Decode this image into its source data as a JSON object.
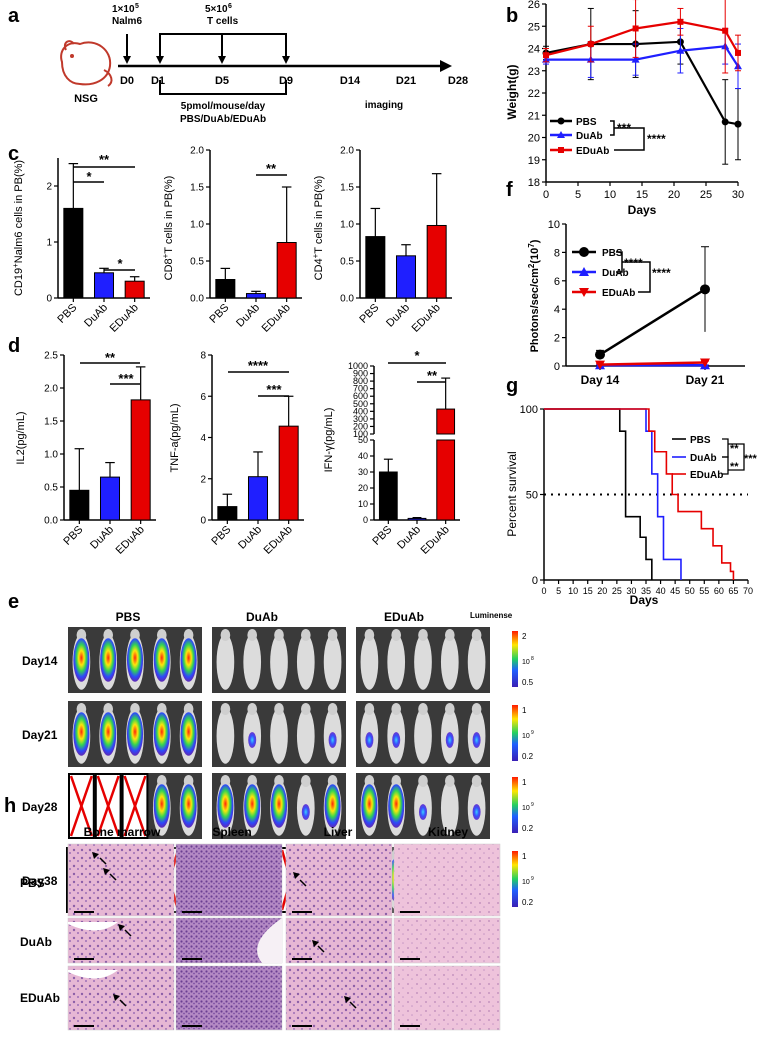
{
  "panel_labels": {
    "a": "a",
    "b": "b",
    "c": "c",
    "d": "d",
    "e": "e",
    "f": "f",
    "g": "g",
    "h": "h"
  },
  "panel_a": {
    "mouse_label": "NSG",
    "nalm6_dose": "1×10",
    "nalm6_exp": "5",
    "nalm6_name": "Nalm6",
    "tcell_dose": "5×10",
    "tcell_exp": "6",
    "tcell_name": "T cells",
    "days": [
      "D0",
      "D1",
      "D5",
      "D9",
      "D14",
      "D21",
      "D28"
    ],
    "treatment_line1": "5pmol/mouse/day",
    "treatment_line2": "PBS/DuAb/EDuAb",
    "imaging": "imaging"
  },
  "colors": {
    "pbs": "#000000",
    "duab": "#1f1fff",
    "eduab": "#e60000"
  },
  "groups": [
    "PBS",
    "DuAb",
    "EDuAb"
  ],
  "chart_data": [
    {
      "id": "b",
      "type": "line",
      "title": "",
      "xlabel": "Days",
      "ylabel": "Weight(g)",
      "xlim": [
        0,
        30
      ],
      "ylim": [
        18,
        26
      ],
      "xticks": [
        "0",
        "5",
        "10",
        "15",
        "20",
        "25",
        "30"
      ],
      "yticks": [
        "18",
        "19",
        "20",
        "21",
        "22",
        "23",
        "24",
        "25",
        "26"
      ],
      "x": [
        0,
        7,
        14,
        21,
        28,
        30
      ],
      "series": [
        {
          "name": "PBS",
          "values": [
            23.8,
            24.2,
            24.2,
            24.3,
            20.7,
            20.6
          ],
          "err": [
            0.3,
            1.6,
            1.5,
            1.0,
            1.9,
            1.6
          ]
        },
        {
          "name": "DuAb",
          "values": [
            23.5,
            23.5,
            23.5,
            23.9,
            24.1,
            23.2
          ],
          "err": [
            0.2,
            0.8,
            0.7,
            1.0,
            0.8,
            1.0
          ]
        },
        {
          "name": "EDuAb",
          "values": [
            23.7,
            24.2,
            24.9,
            25.2,
            24.8,
            23.8
          ],
          "err": [
            0.3,
            0.8,
            1.3,
            0.6,
            1.9,
            0.8
          ]
        }
      ],
      "significance": [
        "***",
        "****"
      ]
    },
    {
      "id": "c1",
      "type": "bar",
      "ylabel": "CD19+Nalm6 cells in PB(%)",
      "ylabel_main": "CD19",
      "ylabel_sup": "+",
      "ylabel_rest": "Nalm6 cells in PB(%)",
      "ylim": [
        0,
        2.5
      ],
      "yticks": [
        "0",
        "1",
        "2"
      ],
      "categories": [
        "PBS",
        "DuAb",
        "EDuAb"
      ],
      "values": [
        1.6,
        0.45,
        0.3
      ],
      "err": [
        0.8,
        0.08,
        0.08
      ],
      "significance": [
        "**",
        "*",
        "*"
      ]
    },
    {
      "id": "c2",
      "type": "bar",
      "ylabel": "CD8+T cells in PB(%)",
      "ylabel_main": "CD8",
      "ylabel_sup": "+",
      "ylabel_rest": "T cells in PB(%)",
      "ylim": [
        0,
        2.0
      ],
      "yticks": [
        "0.0",
        "0.5",
        "1.0",
        "1.5",
        "2.0"
      ],
      "categories": [
        "PBS",
        "DuAb",
        "EDuAb"
      ],
      "values": [
        0.25,
        0.06,
        0.75
      ],
      "err": [
        0.15,
        0.03,
        0.75
      ],
      "significance": [
        "**"
      ]
    },
    {
      "id": "c3",
      "type": "bar",
      "ylabel": "CD4+T cells in PB(%)",
      "ylabel_main": "CD4",
      "ylabel_sup": "+",
      "ylabel_rest": "T cells in PB(%)",
      "ylim": [
        0,
        2.0
      ],
      "yticks": [
        "0.0",
        "0.5",
        "1.0",
        "1.5",
        "2.0"
      ],
      "categories": [
        "PBS",
        "DuAb",
        "EDuAb"
      ],
      "values": [
        0.83,
        0.57,
        0.98
      ],
      "err": [
        0.38,
        0.15,
        0.7
      ],
      "significance": []
    },
    {
      "id": "d1",
      "type": "bar",
      "ylabel": "IL2(pg/mL)",
      "ylim": [
        0,
        2.5
      ],
      "yticks": [
        "0.0",
        "0.5",
        "1.0",
        "1.5",
        "2.0",
        "2.5"
      ],
      "categories": [
        "PBS",
        "DuAb",
        "EDuAb"
      ],
      "values": [
        0.45,
        0.65,
        1.82
      ],
      "err": [
        0.63,
        0.22,
        0.5
      ],
      "significance": [
        "**",
        "***"
      ]
    },
    {
      "id": "d2",
      "type": "bar",
      "ylabel": "TNF-a(pg/mL)",
      "ylim": [
        0,
        8
      ],
      "yticks": [
        "0",
        "2",
        "4",
        "6",
        "8"
      ],
      "categories": [
        "PBS",
        "DuAb",
        "EDuAb"
      ],
      "values": [
        0.65,
        2.1,
        4.55
      ],
      "err": [
        0.6,
        1.2,
        1.45
      ],
      "significance": [
        "****",
        "***"
      ]
    },
    {
      "id": "d3",
      "type": "bar",
      "ylabel": "IFN-γ(pg/mL)",
      "ylim": [
        0,
        1000
      ],
      "yticks": [
        "0",
        "10",
        "20",
        "30",
        "40",
        "50",
        "100",
        "200",
        "300",
        "400",
        "500",
        "600",
        "700",
        "800",
        "900",
        "1000"
      ],
      "categories": [
        "PBS",
        "DuAb",
        "EDuAb"
      ],
      "values": [
        30,
        1,
        430
      ],
      "err": [
        8,
        0.5,
        410
      ],
      "significance": [
        "*",
        "**"
      ]
    },
    {
      "id": "f",
      "type": "line",
      "xlabel": "",
      "ylabel": "Photons/sec/cm2(10^7)",
      "ylabel_main": "Photons/sec/cm",
      "ylabel_sup": "2",
      "ylabel_rest": "(10",
      "ylabel_sup2": "7",
      "ylabel_end": ")",
      "ylim": [
        0,
        10
      ],
      "yticks": [
        "0",
        "2",
        "4",
        "6",
        "8",
        "10"
      ],
      "categories": [
        "Day 14",
        "Day 21"
      ],
      "series": [
        {
          "name": "PBS",
          "values": [
            0.8,
            5.4
          ],
          "err": [
            0.3,
            3.0
          ]
        },
        {
          "name": "DuAb",
          "values": [
            0.05,
            0.05
          ],
          "err": [
            0.02,
            0.02
          ]
        },
        {
          "name": "EDuAb",
          "values": [
            0.1,
            0.25
          ],
          "err": [
            0.05,
            0.1
          ]
        }
      ],
      "significance": [
        "****",
        "****"
      ]
    },
    {
      "id": "g",
      "type": "line",
      "xlabel": "Days",
      "ylabel": "Percent survival",
      "xlim": [
        0,
        70
      ],
      "ylim": [
        0,
        100
      ],
      "xticks": [
        "0",
        "5",
        "10",
        "15",
        "20",
        "25",
        "30",
        "35",
        "40",
        "45",
        "50",
        "55",
        "60",
        "65",
        "70"
      ],
      "yticks": [
        "0",
        "50",
        "100"
      ],
      "series": [
        {
          "name": "PBS",
          "x": [
            0,
            26,
            26,
            28,
            28,
            33,
            33,
            35,
            35,
            37,
            37
          ],
          "values": [
            100,
            100,
            87,
            87,
            37,
            37,
            25,
            25,
            12,
            12,
            0
          ]
        },
        {
          "name": "DuAb",
          "x": [
            0,
            35,
            35,
            37,
            37,
            39,
            39,
            41,
            41,
            47,
            47
          ],
          "values": [
            100,
            100,
            87,
            87,
            62,
            62,
            37,
            37,
            12,
            12,
            0
          ]
        },
        {
          "name": "EDuAb",
          "x": [
            0,
            36,
            36,
            38,
            38,
            42,
            42,
            44,
            44,
            46,
            46,
            48,
            48,
            54,
            54,
            58,
            58,
            61,
            61,
            64,
            64,
            65,
            65
          ],
          "values": [
            100,
            100,
            87,
            87,
            75,
            75,
            62,
            62,
            50,
            50,
            40,
            40,
            40,
            40,
            30,
            30,
            20,
            20,
            10,
            10,
            5,
            5,
            0
          ]
        }
      ],
      "significance": [
        "**",
        "**",
        "***"
      ]
    }
  ],
  "panel_e": {
    "group_titles": [
      "PBS",
      "DuAb",
      "EDuAb"
    ],
    "luminescence": "Luminense",
    "days": [
      "Day14",
      "Day21",
      "Day28",
      "Day38"
    ],
    "scales": [
      {
        "max": "2",
        "exp": "10",
        "exp_sup": "8",
        "min": "0.5"
      },
      {
        "max": "1",
        "exp": "10",
        "exp_sup": "9",
        "min": "0.2"
      },
      {
        "max": "1",
        "exp": "10",
        "exp_sup": "9",
        "min": "0.2"
      },
      {
        "max": "1",
        "exp": "10",
        "exp_sup": "9",
        "min": "0.2"
      }
    ]
  },
  "panel_h": {
    "columns": [
      "Bone marrow",
      "Spleen",
      "Liver",
      "Kidney"
    ],
    "rows": [
      "PBS",
      "DuAb",
      "EDuAb"
    ]
  }
}
